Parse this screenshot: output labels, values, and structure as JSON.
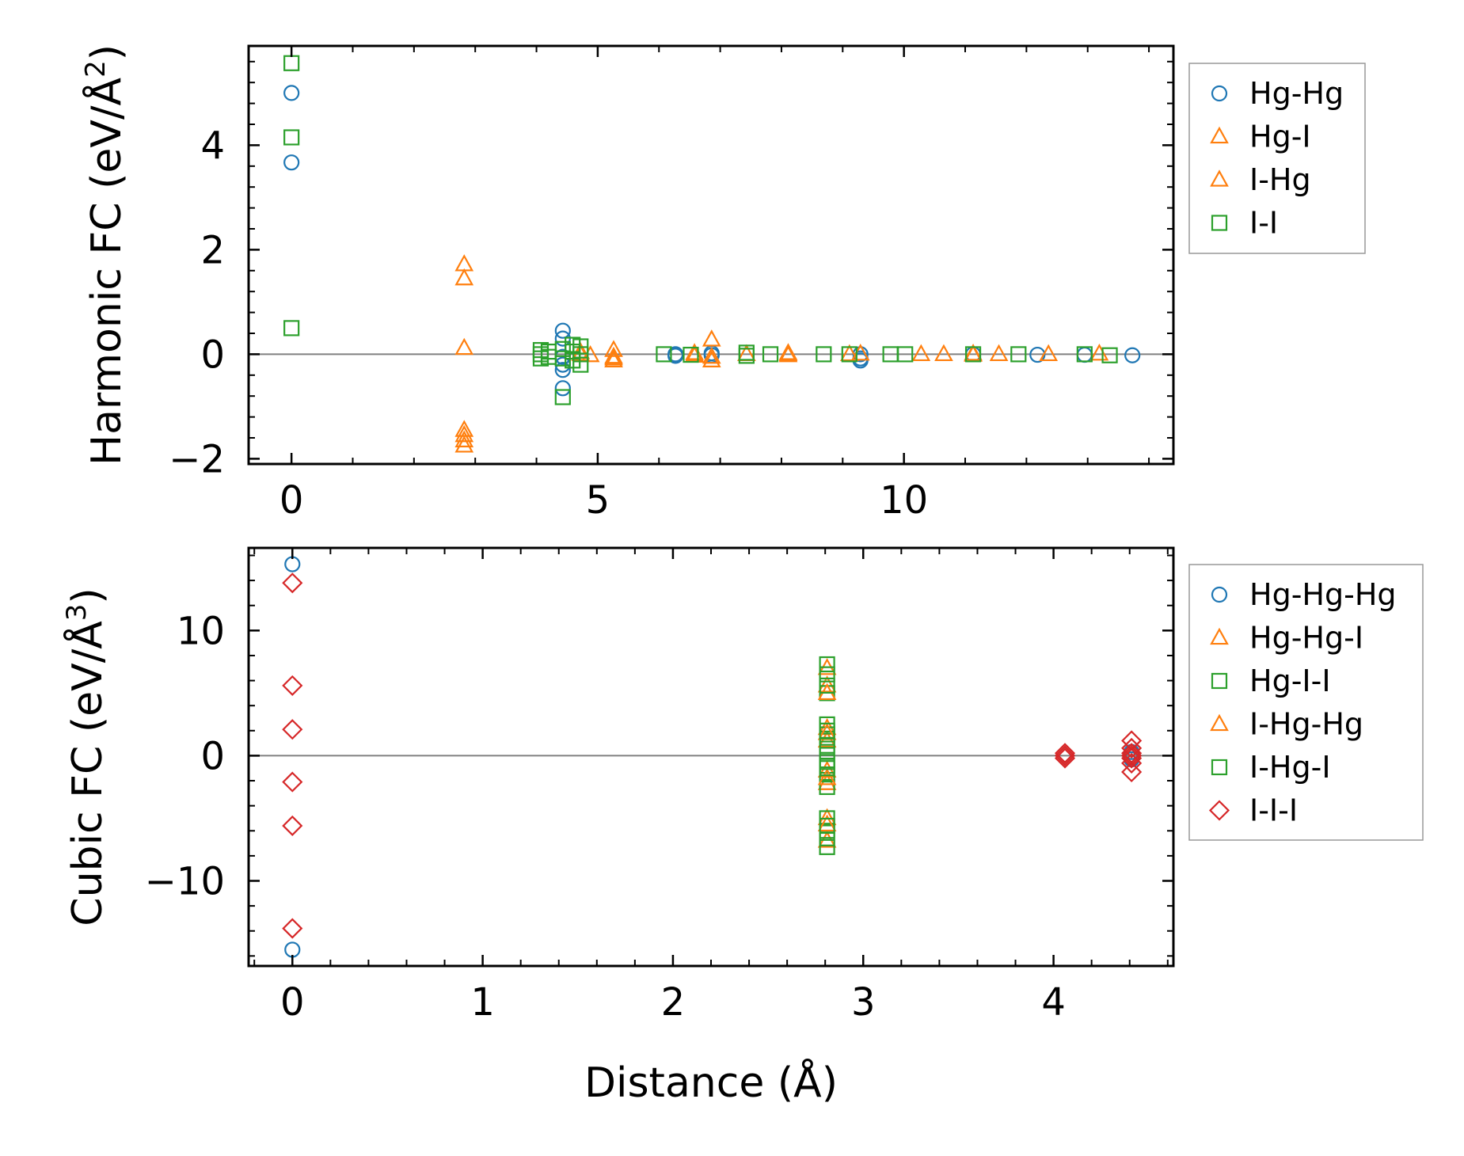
{
  "colors": {
    "blue": "#1f77b4",
    "orange": "#ff7f0e",
    "green": "#2ca02c",
    "red": "#d62728",
    "zero_line": "#808080"
  },
  "chart_data": [
    {
      "type": "scatter",
      "ylabel_main": "Harmonic FC (eV/Å",
      "ylabel_sup": "2",
      "ylabel_close": ")",
      "xlim": [
        -0.7,
        14.4
      ],
      "ylim": [
        -2.1,
        5.9
      ],
      "x_ticks": [
        0,
        5,
        10
      ],
      "x_tick_labels": [
        "0",
        "5",
        "10"
      ],
      "y_ticks": [
        -2,
        0,
        2,
        4
      ],
      "y_tick_labels": [
        "−2",
        "0",
        "2",
        "4"
      ],
      "zero_line": true,
      "legend_loc": "upper-right-outside",
      "series": [
        {
          "name": "Hg-Hg",
          "marker": "circle",
          "color": "#1f77b4",
          "x": [
            0,
            0,
            4.43,
            4.43,
            4.43,
            4.43,
            4.43,
            4.43,
            6.27,
            6.27,
            6.86,
            6.86,
            9.29,
            9.29,
            9.29,
            11.13,
            12.18,
            12.95,
            13.73
          ],
          "y": [
            5.0,
            3.67,
            0.45,
            0.3,
            -0.05,
            -0.2,
            -0.3,
            -0.65,
            0.0,
            -0.03,
            0.02,
            -0.02,
            0.0,
            -0.08,
            -0.12,
            0.0,
            -0.01,
            -0.01,
            -0.02
          ]
        },
        {
          "name": "Hg-I",
          "marker": "triangle",
          "color": "#ff7f0e",
          "x": [
            2.82,
            2.82,
            2.82,
            2.82,
            2.82,
            2.82,
            2.82,
            4.72,
            4.88,
            5.26,
            5.26,
            5.26,
            6.58,
            6.58,
            6.86,
            6.86,
            6.86,
            7.43,
            8.11,
            8.11,
            9.11,
            9.29,
            10.28,
            10.65,
            11.13,
            11.55,
            12.36,
            13.19
          ],
          "y": [
            1.72,
            1.45,
            0.12,
            -1.45,
            -1.55,
            -1.65,
            -1.75,
            0.0,
            -0.02,
            0.08,
            -0.08,
            -0.12,
            0.02,
            -0.03,
            0.28,
            -0.05,
            -0.12,
            0.0,
            0.02,
            -0.02,
            0.0,
            0.01,
            0.0,
            0.0,
            0.01,
            0.0,
            0.0,
            0.01
          ]
        },
        {
          "name": "I-Hg",
          "marker": "triangle",
          "color": "#ff7f0e",
          "x": [
            4.72,
            5.26,
            6.58,
            8.11,
            11.13
          ],
          "y": [
            0.04,
            -0.05,
            -0.01,
            0.0,
            -0.01
          ]
        },
        {
          "name": "I-I",
          "marker": "square",
          "color": "#2ca02c",
          "x": [
            0,
            0,
            0,
            4.07,
            4.07,
            4.07,
            4.2,
            4.2,
            4.43,
            4.43,
            4.43,
            4.59,
            4.59,
            4.59,
            4.72,
            4.72,
            4.72,
            6.08,
            6.52,
            7.43,
            7.43,
            7.82,
            8.69,
            9.11,
            9.78,
            10.02,
            11.13,
            11.87,
            12.95,
            13.36
          ],
          "y": [
            5.57,
            4.15,
            0.5,
            0.08,
            0.0,
            -0.08,
            0.05,
            -0.05,
            0.1,
            -0.08,
            -0.82,
            0.18,
            0.05,
            -0.12,
            0.15,
            0.0,
            -0.2,
            0.0,
            -0.01,
            0.03,
            -0.03,
            0.0,
            0.0,
            0.0,
            0.0,
            0.0,
            0.0,
            0.0,
            0.0,
            -0.02
          ]
        }
      ]
    },
    {
      "type": "scatter",
      "ylabel_main": "Cubic FC (eV/Å",
      "ylabel_sup": "3",
      "ylabel_close": ")",
      "xlabel": "Distance (Å)",
      "xlim": [
        -0.23,
        4.63
      ],
      "ylim": [
        -16.8,
        16.6
      ],
      "x_ticks": [
        0,
        1,
        2,
        3,
        4
      ],
      "x_tick_labels": [
        "0",
        "1",
        "2",
        "3",
        "4"
      ],
      "y_ticks": [
        -10,
        0,
        10
      ],
      "y_tick_labels": [
        "−10",
        "0",
        "10"
      ],
      "zero_line": true,
      "legend_loc": "upper-right-outside",
      "series": [
        {
          "name": "Hg-Hg-Hg",
          "marker": "circle",
          "color": "#1f77b4",
          "x": [
            0,
            0,
            4.41,
            4.41
          ],
          "y": [
            15.3,
            -15.5,
            0.3,
            -0.3
          ]
        },
        {
          "name": "Hg-Hg-I",
          "marker": "triangle",
          "color": "#ff7f0e",
          "x": [
            2.81,
            2.81,
            2.81,
            2.81,
            2.81,
            2.81,
            2.81,
            2.81
          ],
          "y": [
            7.0,
            5.6,
            2.2,
            1.2,
            -1.2,
            -2.2,
            -5.0,
            -6.8
          ]
        },
        {
          "name": "Hg-I-I",
          "marker": "square",
          "color": "#2ca02c",
          "x": [
            2.81,
            2.81,
            2.81,
            2.81,
            2.81,
            2.81,
            2.81,
            2.81,
            2.81,
            2.81,
            2.81,
            2.81,
            2.81,
            2.81
          ],
          "y": [
            7.3,
            6.5,
            5.0,
            2.5,
            1.7,
            1.2,
            0.3,
            -0.8,
            -1.5,
            -2.5,
            -5.0,
            -6.0,
            -6.6,
            -7.3
          ]
        },
        {
          "name": "I-Hg-Hg",
          "marker": "triangle",
          "color": "#ff7f0e",
          "x": [
            2.81,
            2.81,
            2.81,
            2.81
          ],
          "y": [
            5.0,
            1.8,
            -1.8,
            -5.5
          ]
        },
        {
          "name": "I-Hg-I",
          "marker": "square",
          "color": "#2ca02c",
          "x": [
            2.81,
            2.81,
            2.81,
            2.81,
            2.81,
            2.81
          ],
          "y": [
            5.6,
            2.0,
            0.8,
            -0.5,
            -1.0,
            -5.6
          ]
        },
        {
          "name": "I-I-I",
          "marker": "diamond",
          "color": "#d62728",
          "x": [
            0,
            0,
            0,
            0,
            0,
            0,
            4.06,
            4.06,
            4.06,
            4.41,
            4.41,
            4.41,
            4.41,
            4.41,
            4.41,
            4.41
          ],
          "y": [
            13.8,
            5.6,
            2.1,
            -2.1,
            -5.6,
            -13.8,
            0.2,
            0.0,
            -0.2,
            1.2,
            0.6,
            0.2,
            0.0,
            -0.2,
            -0.6,
            -1.3
          ]
        }
      ]
    }
  ]
}
